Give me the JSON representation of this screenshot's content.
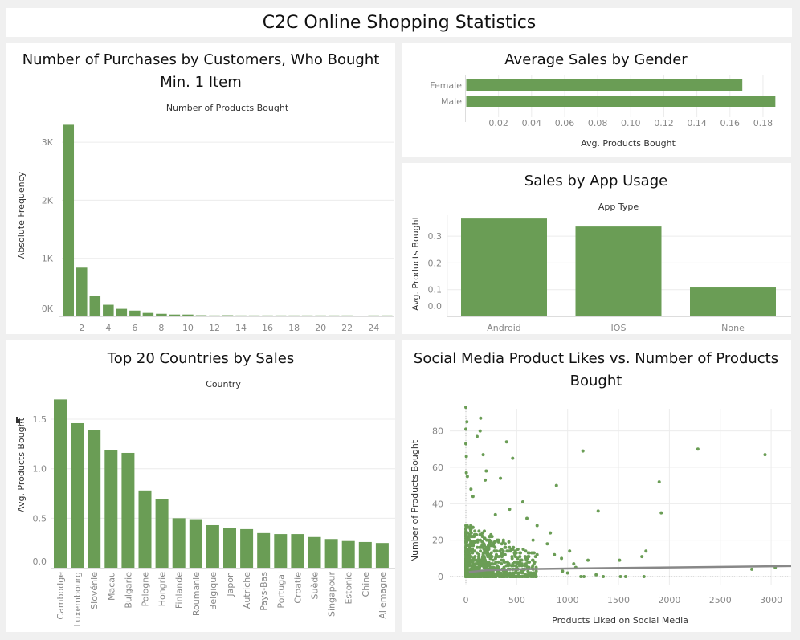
{
  "dashboard_title": "C2C Online Shopping Statistics",
  "bar_color": "#6a9d55",
  "chart_data": [
    {
      "id": "hist",
      "type": "bar",
      "title_lines": [
        "Number of Purchases by Customers, Who Bought",
        "Min. 1 Item"
      ],
      "xlabel": "Number of Products Bought",
      "ylabel": "Absolute Frequency",
      "categories": [
        1,
        2,
        3,
        4,
        5,
        6,
        7,
        8,
        9,
        10,
        11,
        12,
        13,
        14,
        15,
        16,
        17,
        18,
        19,
        20,
        21,
        22,
        23,
        24,
        25
      ],
      "values": [
        3300,
        840,
        350,
        200,
        130,
        100,
        60,
        45,
        32,
        32,
        20,
        5,
        20,
        5,
        5,
        5,
        5,
        5,
        5,
        5,
        5,
        5,
        0,
        5,
        5
      ],
      "x_ticks": [
        "2",
        "4",
        "6",
        "8",
        "10",
        "12",
        "14",
        "16",
        "18",
        "20",
        "22",
        "24"
      ],
      "y_ticks": [
        {
          "v": 0,
          "label": "0K"
        },
        {
          "v": 1000,
          "label": "1K"
        },
        {
          "v": 2000,
          "label": "2K"
        },
        {
          "v": 3000,
          "label": "3K"
        }
      ],
      "ylim": [
        0,
        3300
      ]
    },
    {
      "id": "gender",
      "type": "bar",
      "orientation": "horizontal",
      "title": "Average Sales by Gender",
      "xlabel": "Avg. Products Bought",
      "categories": [
        "Female",
        "Male"
      ],
      "values": [
        0.167,
        0.187
      ],
      "x_ticks": [
        "0.02",
        "0.04",
        "0.06",
        "0.08",
        "0.10",
        "0.12",
        "0.14",
        "0.16",
        "0.18"
      ]
    },
    {
      "id": "app",
      "type": "bar",
      "title": "Sales by App Usage",
      "xlabel": "App Type",
      "ylabel": "Avg. Products Bought",
      "categories": [
        "Android",
        "IOS",
        "None"
      ],
      "values": [
        0.366,
        0.336,
        0.108
      ],
      "y_ticks": [
        "0.0",
        "0.1",
        "0.2",
        "0.3"
      ]
    },
    {
      "id": "countries",
      "type": "bar",
      "title": "Top 20 Countries by Sales",
      "xlabel": "Country",
      "ylabel": "Avg. Products Bought",
      "categories": [
        "Cambodge",
        "Luxembourg",
        "Slovénie",
        "Macau",
        "Bulgarie",
        "Pologne",
        "Hongrie",
        "Finlande",
        "Roumanie",
        "Belgique",
        "Japon",
        "Autriche",
        "Pays-Bas",
        "Portugal",
        "Croatie",
        "Suède",
        "Singapour",
        "Estonie",
        "Chine",
        "Allemagne"
      ],
      "values": [
        1.7,
        1.46,
        1.39,
        1.19,
        1.16,
        0.78,
        0.69,
        0.5,
        0.49,
        0.43,
        0.4,
        0.39,
        0.35,
        0.34,
        0.34,
        0.31,
        0.29,
        0.27,
        0.26,
        0.25
      ],
      "y_ticks": [
        "0.0",
        "0.5",
        "1.0",
        "1.5"
      ]
    },
    {
      "id": "scatter",
      "type": "scatter",
      "title_lines": [
        "Social Media Product Likes vs. Number of Products",
        "Bought"
      ],
      "xlabel": "Products Liked on Social Media",
      "ylabel": "Number of Products Bought",
      "x_ticks": [
        "0",
        "500",
        "1000",
        "1500",
        "2000",
        "2500",
        "3000"
      ],
      "y_ticks": [
        "0",
        "20",
        "40",
        "60",
        "80"
      ],
      "xlim": [
        -150,
        3200
      ],
      "ylim": [
        -3,
        95
      ],
      "points": [
        [
          0,
          93
        ],
        [
          10,
          85
        ],
        [
          145,
          87
        ],
        [
          0,
          81
        ],
        [
          140,
          80
        ],
        [
          110,
          77
        ],
        [
          0,
          73
        ],
        [
          400,
          74
        ],
        [
          170,
          67
        ],
        [
          460,
          65
        ],
        [
          5,
          66
        ],
        [
          1150,
          69
        ],
        [
          2280,
          70
        ],
        [
          2940,
          67
        ],
        [
          200,
          58
        ],
        [
          190,
          53
        ],
        [
          340,
          54
        ],
        [
          890,
          50
        ],
        [
          1900,
          52
        ],
        [
          5,
          57
        ],
        [
          15,
          55
        ],
        [
          50,
          48
        ],
        [
          70,
          44
        ],
        [
          560,
          41
        ],
        [
          430,
          37
        ],
        [
          1300,
          36
        ],
        [
          1920,
          35
        ],
        [
          290,
          34
        ],
        [
          600,
          32
        ],
        [
          700,
          28
        ],
        [
          830,
          24
        ],
        [
          660,
          20
        ],
        [
          1020,
          14
        ],
        [
          1770,
          14
        ],
        [
          1730,
          11
        ],
        [
          1200,
          9
        ],
        [
          1510,
          9
        ],
        [
          1060,
          7
        ],
        [
          940,
          10
        ],
        [
          870,
          12
        ],
        [
          800,
          18
        ],
        [
          2810,
          4
        ],
        [
          3040,
          5
        ],
        [
          1570,
          0
        ],
        [
          1750,
          0
        ],
        [
          1350,
          0
        ],
        [
          1280,
          1
        ],
        [
          1160,
          0
        ],
        [
          1130,
          0
        ],
        [
          1000,
          2
        ],
        [
          950,
          3
        ],
        [
          1080,
          5
        ],
        [
          1520,
          0
        ]
      ],
      "cluster": {
        "count": 900,
        "x_max": 700,
        "y_max": 30
      },
      "trend": [
        [
          30,
          2.5
        ],
        [
          200,
          3.4
        ],
        [
          500,
          4.0
        ],
        [
          1000,
          4.4
        ],
        [
          2000,
          5.0
        ],
        [
          3200,
          5.8
        ]
      ]
    }
  ]
}
